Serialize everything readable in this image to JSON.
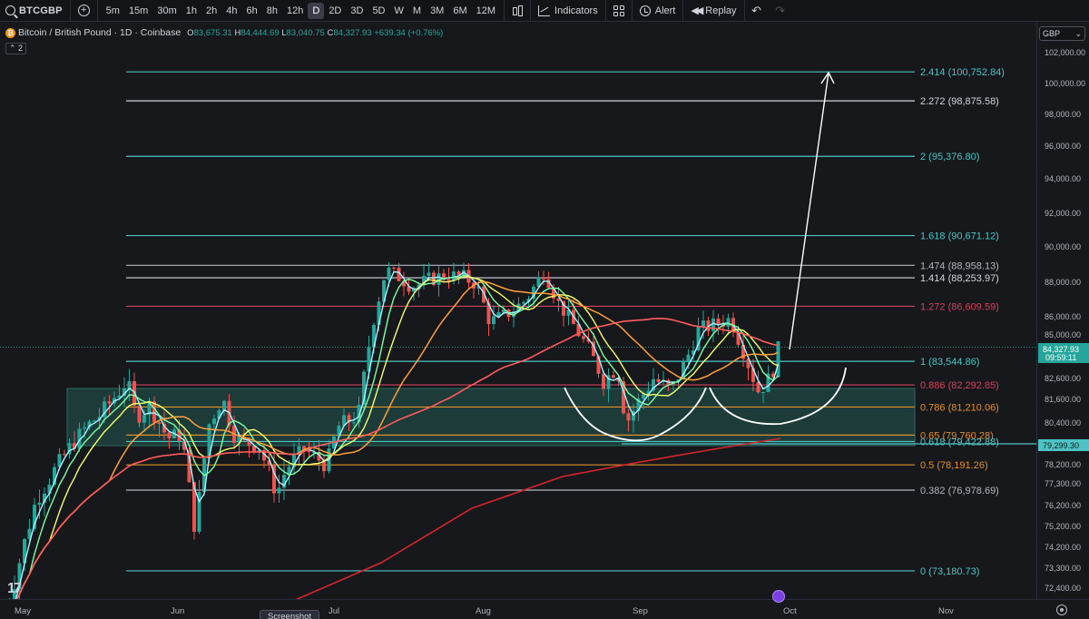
{
  "toolbar": {
    "symbol": "BTCGBP",
    "intervals": [
      "5m",
      "15m",
      "30m",
      "1h",
      "2h",
      "4h",
      "6h",
      "8h",
      "12h",
      "D",
      "2D",
      "3D",
      "5D",
      "W",
      "M",
      "3M",
      "6M",
      "12M"
    ],
    "active_interval": "D",
    "indicators_label": "Indicators",
    "alert_label": "Alert",
    "replay_label": "Replay"
  },
  "legend": {
    "title": "Bitcoin / British Pound · 1D · Coinbase",
    "o_label": "O",
    "o": "83,675.31",
    "h_label": "H",
    "h": "84,444.69",
    "l_label": "L",
    "l": "83,040.75",
    "c_label": "C",
    "c": "84,327.93",
    "change": "+639.34 (+0.76%)",
    "indicator_count": "2"
  },
  "currency": "GBP",
  "price_axis_ticks": [
    "102,000.00",
    "100,000.00",
    "98,000.00",
    "96,000.00",
    "94,000.00",
    "92,000.00",
    "90,000.00",
    "88,000.00",
    "86,000.00",
    "85,000.00",
    "82,600.00",
    "81,600.00",
    "80,400.00",
    "78,200.00",
    "77,300.00",
    "76,200.00",
    "75,200.00",
    "74,200.00",
    "73,300.00",
    "72,400.00"
  ],
  "price_labels": {
    "current": "84,327.93",
    "countdown": "09:59:11",
    "horizontal_line": "79,299.30"
  },
  "time_axis": [
    "May",
    "Jun",
    "Jul",
    "Aug",
    "Sep",
    "Oct",
    "Nov"
  ],
  "fib_levels": [
    {
      "label": "2.414 (100,752.84)",
      "color": "#4fc3c3"
    },
    {
      "label": "2.272 (98,875.58)",
      "color": "#d1d4dc"
    },
    {
      "label": "2 (95,376.80)",
      "color": "#4fc3c3"
    },
    {
      "label": "1.618 (90,671.12)",
      "color": "#4fc3c3"
    },
    {
      "label": "1.474 (88,958.13)",
      "color": "#b2b5be"
    },
    {
      "label": "1.414 (88,253.97)",
      "color": "#d1d4dc"
    },
    {
      "label": "1.272 (86,609.59)",
      "color": "#d0435e"
    },
    {
      "label": "1 (83,544.86)",
      "color": "#4fc3c3"
    },
    {
      "label": "0.886 (82,292.85)",
      "color": "#d0435e"
    },
    {
      "label": "0.786 (81,210.06)",
      "color": "#e0902b"
    },
    {
      "label": "0.65 (79,760.28)",
      "color": "#e0902b"
    },
    {
      "label": "0.618 (79,422.88)",
      "color": "#4fc3c3"
    },
    {
      "label": "0.5 (78,191.26)",
      "color": "#e0902b"
    },
    {
      "label": "0.382 (76,978.69)",
      "color": "#b2b5be"
    },
    {
      "label": "0 (73,180.73)",
      "color": "#4fc3c3"
    }
  ],
  "screenshot_tooltip": "Screenshot",
  "colors": {
    "up": "#26a69a",
    "down": "#ef5350",
    "background": "#17181c"
  }
}
